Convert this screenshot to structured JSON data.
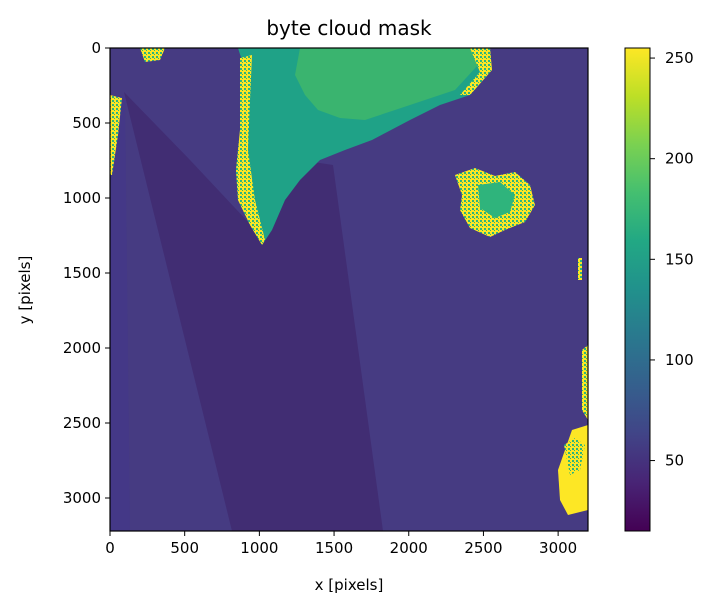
{
  "chart_data": {
    "type": "heatmap",
    "title": "byte cloud mask",
    "xlabel": "x [pixels]",
    "ylabel": "y [pixels]",
    "xlim": [
      0,
      3200
    ],
    "ylim": [
      3220,
      0
    ],
    "x_ticks": [
      0,
      500,
      1000,
      1500,
      2000,
      2500,
      3000
    ],
    "y_ticks": [
      0,
      500,
      1000,
      1500,
      2000,
      2500,
      3000
    ],
    "colorbar": {
      "colormap": "viridis",
      "range": [
        15,
        255
      ],
      "ticks": [
        50,
        100,
        150,
        200,
        250
      ]
    },
    "colors": {
      "sea_background": "#463b82",
      "swath_dark": "#412d73",
      "land_teal": "#1fa287",
      "land_green": "#3ab46f",
      "land_yellow": "#fde725"
    }
  }
}
